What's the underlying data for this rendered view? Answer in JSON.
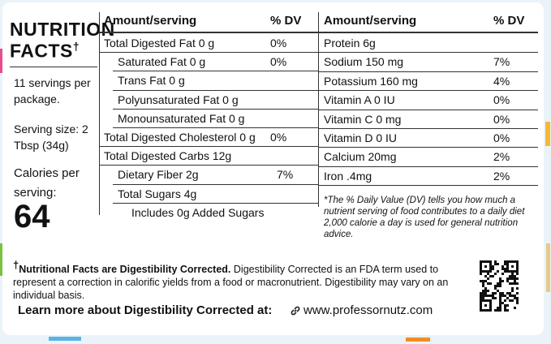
{
  "panel": {
    "title_line1": "NUTRITION",
    "title_line2": "FACTS",
    "dagger": "†",
    "servings": "11 servings per package.",
    "serving_size": "Serving size: 2 Tbsp (34g)",
    "calories_label": "Calories per serving:",
    "calories": "64"
  },
  "table_left": {
    "header": [
      "Amount/serving",
      "% DV"
    ],
    "rows": [
      {
        "label": "Total Digested Fat 0 g",
        "dv": "0%"
      },
      {
        "label": "Saturated Fat 0 g",
        "dv": "0%"
      },
      {
        "label": "Trans Fat 0 g"
      },
      {
        "label": "Polyunsaturated Fat 0 g"
      },
      {
        "label": "Monounsaturated Fat 0 g"
      },
      {
        "label": "Total Digested Cholesterol 0 g",
        "dv": "0%"
      },
      {
        "label": "Total Digested Carbs  12g"
      },
      {
        "label": "Dietary Fiber 2g",
        "dv": "7%"
      },
      {
        "label": "Total Sugars  4g"
      },
      {
        "label": "Includes 0g Added Sugars"
      }
    ]
  },
  "table_right": {
    "header": [
      "Amount/serving",
      "% DV"
    ],
    "rows": [
      {
        "label": "Protein  6g"
      },
      {
        "label": "Sodium 150 mg",
        "dv": "7%"
      },
      {
        "label": "Potassium 160 mg",
        "dv": "4%"
      },
      {
        "label": "Vitamin A 0 IU",
        "dv": "0%"
      },
      {
        "label": "Vitamin C 0 mg",
        "dv": "0%"
      },
      {
        "label": "Vitamin D 0 IU",
        "dv": "0%"
      },
      {
        "label": "Calcium 20mg",
        "dv": "2%"
      },
      {
        "label": "Iron  .4mg",
        "dv": "2%"
      }
    ],
    "footnote": "*The % Daily Value (DV) tells you how much a nutrient serving of food contributes to a daily diet 2,000 calorie a day is used for general nutrition advice."
  },
  "footer": {
    "dagger": "†",
    "bold": "Nutritional Facts are Digestibility Corrected.",
    "text": "Digestibility Corrected is an FDA term used to represent a correction in calorific yields from a food or macronutrient. Digestibility may vary on an individual basis.",
    "learn_more": "Learn more about Digestibility Corrected at:",
    "url": "www.professornutz.com"
  }
}
